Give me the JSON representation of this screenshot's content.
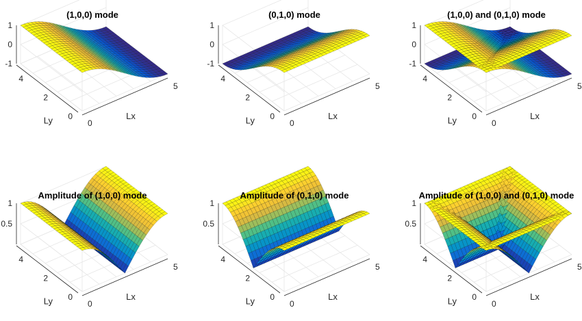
{
  "chart_data": [
    {
      "type": "surface",
      "title": "(1,0,0) mode",
      "function": "cos(pi*x/Lx)",
      "xlabel": "Lx",
      "ylabel": "Ly",
      "x_range": [
        0,
        5
      ],
      "y_range": [
        0,
        5
      ],
      "z_range": [
        -1,
        1
      ],
      "x_ticks": [
        "0",
        "5"
      ],
      "y_ticks": [
        "0",
        "2",
        "4"
      ],
      "z_ticks": [
        "-1",
        "0",
        "1"
      ],
      "colormap": "parula"
    },
    {
      "type": "surface",
      "title": "(0,1,0) mode",
      "function": "cos(pi*y/Ly)",
      "xlabel": "Lx",
      "ylabel": "Ly",
      "x_range": [
        0,
        5
      ],
      "y_range": [
        0,
        5
      ],
      "z_range": [
        -1,
        1
      ],
      "x_ticks": [
        "0",
        "5"
      ],
      "y_ticks": [
        "0",
        "2",
        "4"
      ],
      "z_ticks": [
        "-1",
        "0",
        "1"
      ],
      "colormap": "parula"
    },
    {
      "type": "surface",
      "title": "(1,0,0) and (0,1,0) mode",
      "function": "cos(pi*x/Lx) and cos(pi*y/Ly)",
      "xlabel": "Lx",
      "ylabel": "Ly",
      "x_range": [
        0,
        5
      ],
      "y_range": [
        0,
        5
      ],
      "z_range": [
        -1,
        1
      ],
      "x_ticks": [
        "0",
        "5"
      ],
      "y_ticks": [
        "0",
        "2",
        "4"
      ],
      "z_ticks": [
        "-1",
        "0",
        "1"
      ],
      "colormap": "parula"
    },
    {
      "type": "surface",
      "title": "Amplitude of (1,0,0) mode",
      "function": "|cos(pi*x/Lx)|",
      "xlabel": "Lx",
      "ylabel": "Ly",
      "x_range": [
        0,
        5
      ],
      "y_range": [
        0,
        5
      ],
      "z_range": [
        0,
        1
      ],
      "x_ticks": [
        "0",
        "5"
      ],
      "y_ticks": [
        "0",
        "2",
        "4"
      ],
      "z_ticks": [
        "0.5",
        "1"
      ],
      "colormap": "parula"
    },
    {
      "type": "surface",
      "title": "Amplitude of (0,1,0) mode",
      "function": "|cos(pi*y/Ly)|",
      "xlabel": "Lx",
      "ylabel": "Ly",
      "x_range": [
        0,
        5
      ],
      "y_range": [
        0,
        5
      ],
      "z_range": [
        0,
        1
      ],
      "x_ticks": [
        "0",
        "5"
      ],
      "y_ticks": [
        "0",
        "2",
        "4"
      ],
      "z_ticks": [
        "0.5",
        "1"
      ],
      "colormap": "parula"
    },
    {
      "type": "surface",
      "title": "Amplitude of (1,0,0) and (0,1,0) mode",
      "function": "|cos(pi*x/Lx)| and |cos(pi*y/Ly)|",
      "xlabel": "Lx",
      "ylabel": "Ly",
      "x_range": [
        0,
        5
      ],
      "y_range": [
        0,
        5
      ],
      "z_range": [
        0,
        1
      ],
      "x_ticks": [
        "0",
        "5"
      ],
      "y_ticks": [
        "0",
        "2",
        "4"
      ],
      "z_ticks": [
        "0.5",
        "1"
      ],
      "colormap": "parula"
    }
  ]
}
